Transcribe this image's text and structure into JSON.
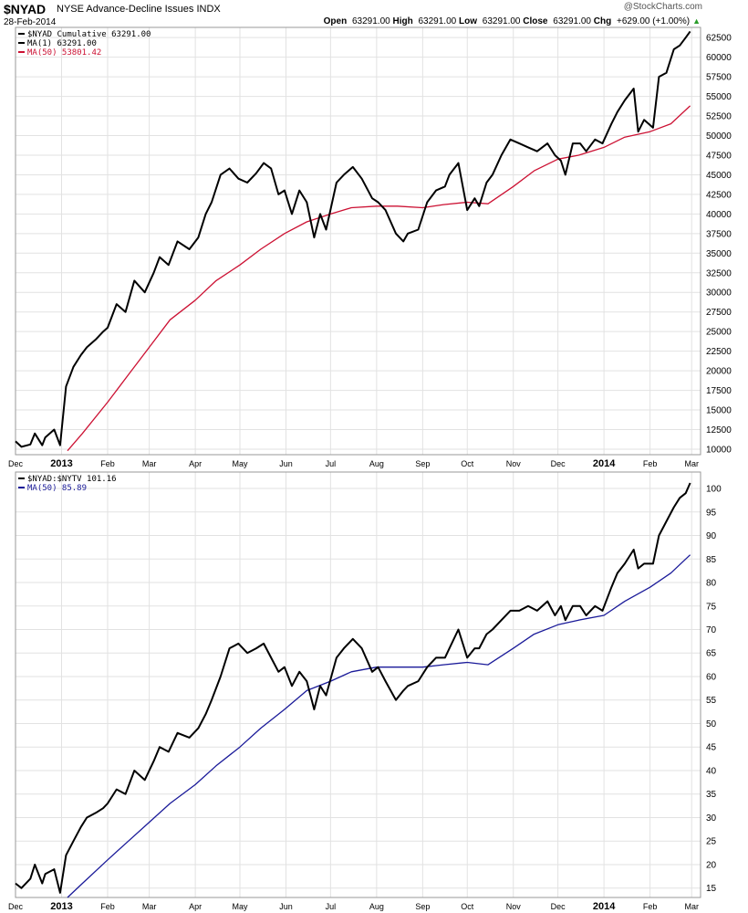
{
  "header": {
    "symbol": "$NYAD",
    "name": "NYSE Advance-Decline Issues",
    "exchange": "INDX",
    "date": "28-Feb-2014",
    "watermark": "@StockCharts.com",
    "open_label": "Open",
    "open": "63291.00",
    "high_label": "High",
    "high": "63291.00",
    "low_label": "Low",
    "low": "63291.00",
    "close_label": "Close",
    "close": "63291.00",
    "chg_label": "Chg",
    "chg": "+629.00 (+1.00%)",
    "up_color": "#2a9d2a"
  },
  "chart_data": [
    {
      "type": "line",
      "panel": "top",
      "ylim": [
        9300,
        63800
      ],
      "yticks": [
        10000,
        12500,
        15000,
        17500,
        20000,
        22500,
        25000,
        27500,
        30000,
        32500,
        35000,
        37500,
        40000,
        42500,
        45000,
        47500,
        50000,
        52500,
        55000,
        57500,
        60000,
        62500
      ],
      "x_tick_labels": [
        "Dec",
        "2013",
        "Feb",
        "Mar",
        "Apr",
        "May",
        "Jun",
        "Jul",
        "Aug",
        "Sep",
        "Oct",
        "Nov",
        "Dec",
        "2014",
        "Feb",
        "Mar"
      ],
      "x_tick_bold": [
        "2013",
        "2014"
      ],
      "x_tick_dates": [
        "2012-12-01",
        "2013-01-01",
        "2013-02-01",
        "2013-03-01",
        "2013-04-01",
        "2013-05-01",
        "2013-06-01",
        "2013-07-01",
        "2013-08-01",
        "2013-09-01",
        "2013-10-01",
        "2013-11-01",
        "2013-12-01",
        "2014-01-01",
        "2014-02-01",
        "2014-03-01"
      ],
      "x_range": [
        "2012-12-01",
        "2014-03-07"
      ],
      "grid": true,
      "legend_position": "top-left",
      "legend": [
        "$NYAD Cumulative 63291.00",
        "MA(1) 63291.00",
        "MA(50) 53801.42"
      ],
      "series": [
        {
          "name": "$NYAD Cumulative",
          "color": "#000000",
          "x": [
            "2012-12-01",
            "2012-12-05",
            "2012-12-11",
            "2012-12-14",
            "2012-12-19",
            "2012-12-21",
            "2012-12-27",
            "2012-12-31",
            "2013-01-04",
            "2013-01-09",
            "2013-01-14",
            "2013-01-18",
            "2013-01-24",
            "2013-01-29",
            "2013-02-01",
            "2013-02-07",
            "2013-02-13",
            "2013-02-19",
            "2013-02-26",
            "2013-03-04",
            "2013-03-08",
            "2013-03-14",
            "2013-03-20",
            "2013-03-28",
            "2013-04-03",
            "2013-04-08",
            "2013-04-12",
            "2013-04-18",
            "2013-04-24",
            "2013-04-30",
            "2013-05-06",
            "2013-05-12",
            "2013-05-17",
            "2013-05-22",
            "2013-05-27",
            "2013-05-31",
            "2013-06-05",
            "2013-06-10",
            "2013-06-15",
            "2013-06-20",
            "2013-06-24",
            "2013-06-28",
            "2013-07-05",
            "2013-07-10",
            "2013-07-16",
            "2013-07-22",
            "2013-07-29",
            "2013-08-02",
            "2013-08-07",
            "2013-08-14",
            "2013-08-19",
            "2013-08-22",
            "2013-08-29",
            "2013-09-04",
            "2013-09-10",
            "2013-09-16",
            "2013-09-19",
            "2013-09-25",
            "2013-10-01",
            "2013-10-06",
            "2013-10-09",
            "2013-10-14",
            "2013-10-18",
            "2013-10-24",
            "2013-10-30",
            "2013-11-05",
            "2013-11-11",
            "2013-11-17",
            "2013-11-24",
            "2013-11-29",
            "2013-12-03",
            "2013-12-06",
            "2013-12-11",
            "2013-12-16",
            "2013-12-20",
            "2013-12-26",
            "2013-12-31",
            "2014-01-06",
            "2014-01-10",
            "2014-01-15",
            "2014-01-21",
            "2014-01-24",
            "2014-01-28",
            "2014-02-03",
            "2014-02-07",
            "2014-02-12",
            "2014-02-17",
            "2014-02-21",
            "2014-02-25",
            "2014-02-28"
          ],
          "y": [
            11000,
            10300,
            10600,
            12000,
            10500,
            11500,
            12500,
            10500,
            18000,
            20500,
            22000,
            23000,
            24000,
            25000,
            25500,
            28500,
            27500,
            31500,
            30000,
            32500,
            34500,
            33500,
            36500,
            35500,
            37000,
            40000,
            41500,
            45000,
            45800,
            44500,
            44000,
            45200,
            46500,
            45800,
            42500,
            43000,
            40000,
            43000,
            41500,
            37000,
            40000,
            38000,
            44000,
            45000,
            46000,
            44500,
            42000,
            41500,
            40500,
            37500,
            36500,
            37500,
            38000,
            41500,
            43000,
            43500,
            45000,
            46500,
            40500,
            42000,
            41000,
            44000,
            45000,
            47500,
            49500,
            49000,
            48500,
            48000,
            49000,
            47500,
            46800,
            45000,
            49000,
            49000,
            48000,
            49500,
            49000,
            51500,
            53000,
            54500,
            56000,
            50500,
            52000,
            51000,
            57500,
            58000,
            61000,
            61500,
            62500,
            63291
          ]
        },
        {
          "name": "MA(50)",
          "color": "#cc1133",
          "x": [
            "2013-01-05",
            "2013-01-15",
            "2013-02-01",
            "2013-02-15",
            "2013-03-01",
            "2013-03-15",
            "2013-04-01",
            "2013-04-15",
            "2013-05-01",
            "2013-05-15",
            "2013-05-31",
            "2013-06-15",
            "2013-07-01",
            "2013-07-15",
            "2013-08-01",
            "2013-08-15",
            "2013-09-01",
            "2013-09-15",
            "2013-10-01",
            "2013-10-15",
            "2013-11-01",
            "2013-11-15",
            "2013-12-01",
            "2013-12-15",
            "2014-01-01",
            "2014-01-15",
            "2014-02-01",
            "2014-02-15",
            "2014-02-28"
          ],
          "y": [
            9800,
            12000,
            16000,
            19500,
            23000,
            26500,
            29000,
            31500,
            33500,
            35500,
            37500,
            39000,
            40000,
            40800,
            41000,
            41000,
            40800,
            41200,
            41500,
            41300,
            43500,
            45500,
            47000,
            47500,
            48500,
            49800,
            50500,
            51500,
            53801
          ]
        },
        {
          "name": "MA(1)",
          "color": "#000000",
          "x": [],
          "y": []
        }
      ]
    },
    {
      "type": "line",
      "panel": "bottom",
      "ylim": [
        13,
        103.5
      ],
      "yticks": [
        15,
        20,
        25,
        30,
        35,
        40,
        45,
        50,
        55,
        60,
        65,
        70,
        75,
        80,
        85,
        90,
        95,
        100
      ],
      "x_tick_labels": [
        "Dec",
        "2013",
        "Feb",
        "Mar",
        "Apr",
        "May",
        "Jun",
        "Jul",
        "Aug",
        "Sep",
        "Oct",
        "Nov",
        "Dec",
        "2014",
        "Feb",
        "Mar"
      ],
      "x_tick_bold": [
        "2013",
        "2014"
      ],
      "x_tick_dates": [
        "2012-12-01",
        "2013-01-01",
        "2013-02-01",
        "2013-03-01",
        "2013-04-01",
        "2013-05-01",
        "2013-06-01",
        "2013-07-01",
        "2013-08-01",
        "2013-09-01",
        "2013-10-01",
        "2013-11-01",
        "2013-12-01",
        "2014-01-01",
        "2014-02-01",
        "2014-03-01"
      ],
      "x_range": [
        "2012-12-01",
        "2014-03-07"
      ],
      "grid": true,
      "legend_position": "top-left",
      "legend": [
        "$NYAD:$NYTV 101.16",
        "MA(50) 85.89"
      ],
      "series": [
        {
          "name": "$NYAD:$NYTV",
          "color": "#000000",
          "x": [
            "2012-12-01",
            "2012-12-05",
            "2012-12-11",
            "2012-12-14",
            "2012-12-19",
            "2012-12-21",
            "2012-12-27",
            "2012-12-31",
            "2013-01-04",
            "2013-01-09",
            "2013-01-14",
            "2013-01-18",
            "2013-01-24",
            "2013-01-29",
            "2013-02-01",
            "2013-02-07",
            "2013-02-13",
            "2013-02-19",
            "2013-02-26",
            "2013-03-04",
            "2013-03-08",
            "2013-03-14",
            "2013-03-20",
            "2013-03-28",
            "2013-04-03",
            "2013-04-08",
            "2013-04-12",
            "2013-04-18",
            "2013-04-24",
            "2013-04-30",
            "2013-05-06",
            "2013-05-12",
            "2013-05-17",
            "2013-05-22",
            "2013-05-27",
            "2013-05-31",
            "2013-06-05",
            "2013-06-10",
            "2013-06-15",
            "2013-06-20",
            "2013-06-24",
            "2013-06-28",
            "2013-07-05",
            "2013-07-10",
            "2013-07-16",
            "2013-07-22",
            "2013-07-29",
            "2013-08-02",
            "2013-08-07",
            "2013-08-14",
            "2013-08-19",
            "2013-08-22",
            "2013-08-29",
            "2013-09-04",
            "2013-09-10",
            "2013-09-16",
            "2013-09-19",
            "2013-09-25",
            "2013-10-01",
            "2013-10-06",
            "2013-10-09",
            "2013-10-14",
            "2013-10-18",
            "2013-10-24",
            "2013-10-30",
            "2013-11-05",
            "2013-11-11",
            "2013-11-17",
            "2013-11-24",
            "2013-11-29",
            "2013-12-03",
            "2013-12-06",
            "2013-12-11",
            "2013-12-16",
            "2013-12-20",
            "2013-12-26",
            "2013-12-31",
            "2014-01-06",
            "2014-01-10",
            "2014-01-15",
            "2014-01-21",
            "2014-01-24",
            "2014-01-28",
            "2014-02-03",
            "2014-02-07",
            "2014-02-12",
            "2014-02-17",
            "2014-02-21",
            "2014-02-25",
            "2014-02-28"
          ],
          "y": [
            16,
            15,
            17,
            20,
            16,
            18,
            19,
            14,
            22,
            25,
            28,
            30,
            31,
            32,
            33,
            36,
            35,
            40,
            38,
            42,
            45,
            44,
            48,
            47,
            49,
            52,
            55,
            60,
            66,
            67,
            65,
            66,
            67,
            64,
            61,
            62,
            58,
            61,
            59,
            53,
            58,
            56,
            64,
            66,
            68,
            66,
            61,
            62,
            59,
            55,
            57,
            58,
            59,
            62,
            64,
            64,
            66,
            70,
            64,
            66,
            66,
            69,
            70,
            72,
            74,
            74,
            75,
            74,
            76,
            73,
            75,
            72,
            75,
            75,
            73,
            75,
            74,
            79,
            82,
            84,
            87,
            83,
            84,
            84,
            90,
            93,
            96,
            98,
            99,
            101.16
          ]
        },
        {
          "name": "MA(50)",
          "color": "#1a1a99",
          "x": [
            "2013-01-05",
            "2013-01-15",
            "2013-02-01",
            "2013-02-15",
            "2013-03-01",
            "2013-03-15",
            "2013-04-01",
            "2013-04-15",
            "2013-05-01",
            "2013-05-15",
            "2013-05-31",
            "2013-06-15",
            "2013-07-01",
            "2013-07-15",
            "2013-08-01",
            "2013-08-15",
            "2013-09-01",
            "2013-09-15",
            "2013-10-01",
            "2013-10-15",
            "2013-11-01",
            "2013-11-15",
            "2013-12-01",
            "2013-12-15",
            "2014-01-01",
            "2014-01-15",
            "2014-02-01",
            "2014-02-15",
            "2014-02-28"
          ],
          "y": [
            13,
            16,
            21,
            25,
            29,
            33,
            37,
            41,
            45,
            49,
            53,
            57,
            59,
            61,
            62,
            62,
            62,
            62.5,
            63,
            62.5,
            66,
            69,
            71,
            72,
            73,
            76,
            79,
            82,
            85.89
          ]
        }
      ]
    }
  ]
}
